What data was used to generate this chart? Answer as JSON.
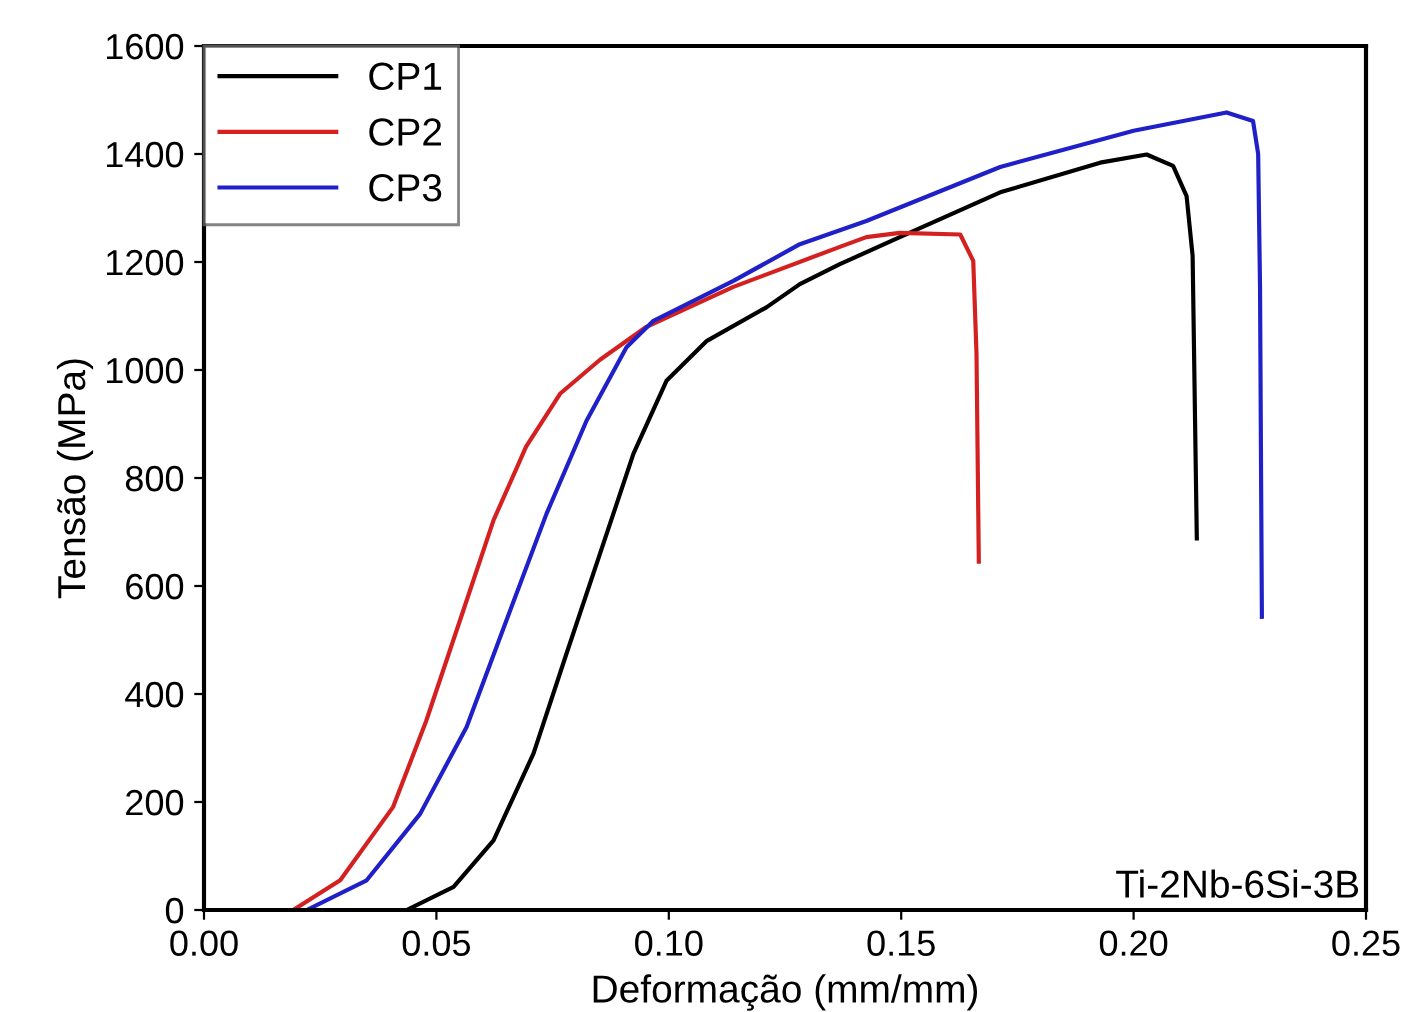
{
  "chart_data": {
    "type": "line",
    "xlabel": "Deformação (mm/mm)",
    "ylabel": "Tensão (MPa)",
    "xlim": [
      0,
      0.25
    ],
    "xticks": [
      {
        "value": 0,
        "label": "0.00"
      },
      0.05,
      {
        "value": 0.1,
        "label": "0.10"
      },
      0.15,
      {
        "value": 0.2,
        "label": "0.20"
      },
      0.25
    ],
    "ylim": [
      0,
      1600
    ],
    "yticks": [
      0,
      200,
      400,
      600,
      800,
      1000,
      1200,
      1400,
      1600
    ],
    "grid": false,
    "legend": "top left",
    "marker": "none",
    "line_style": "solid",
    "annotations": [
      "Ti-2Nb-6Si-3B"
    ],
    "series": [
      {
        "name": "CP1",
        "color": "#000000",
        "x": [
          0,
          0.0436,
          0.0537,
          0.0623,
          0.0709,
          0.078,
          0.0852,
          0.0924,
          0.0995,
          0.1082,
          0.121,
          0.1282,
          0.1368,
          0.1497,
          0.1713,
          0.1928,
          0.2028,
          0.2085,
          0.2114,
          0.2127,
          0.2136
        ],
        "values": [
          0,
          0,
          43,
          129,
          290,
          475,
          660,
          845,
          980,
          1054,
          1116,
          1159,
          1196,
          1246,
          1329,
          1384,
          1399,
          1378,
          1322,
          1211,
          688
        ]
      },
      {
        "name": "CP2",
        "color": "#d42020",
        "x": [
          0,
          0.0192,
          0.0293,
          0.0407,
          0.0478,
          0.0551,
          0.0623,
          0.0693,
          0.0766,
          0.0852,
          0.0952,
          0.1139,
          0.1368,
          0.1425,
          0.1497,
          0.1627,
          0.1655,
          0.1662,
          0.1667
        ],
        "values": [
          0,
          0,
          55,
          191,
          350,
          537,
          722,
          858,
          956,
          1019,
          1080,
          1154,
          1228,
          1246,
          1254,
          1251,
          1202,
          1030,
          645
        ]
      },
      {
        "name": "CP3",
        "color": "#2020c8",
        "x": [
          0,
          0.0221,
          0.035,
          0.0465,
          0.0565,
          0.0651,
          0.0737,
          0.0823,
          0.0909,
          0.0967,
          0.1139,
          0.1282,
          0.1425,
          0.1713,
          0.2,
          0.22,
          0.2257,
          0.2268,
          0.2272,
          0.2276
        ],
        "values": [
          0,
          0,
          55,
          178,
          339,
          537,
          734,
          906,
          1042,
          1091,
          1165,
          1233,
          1276,
          1376,
          1443,
          1477,
          1461,
          1400,
          1154,
          543
        ]
      }
    ]
  }
}
